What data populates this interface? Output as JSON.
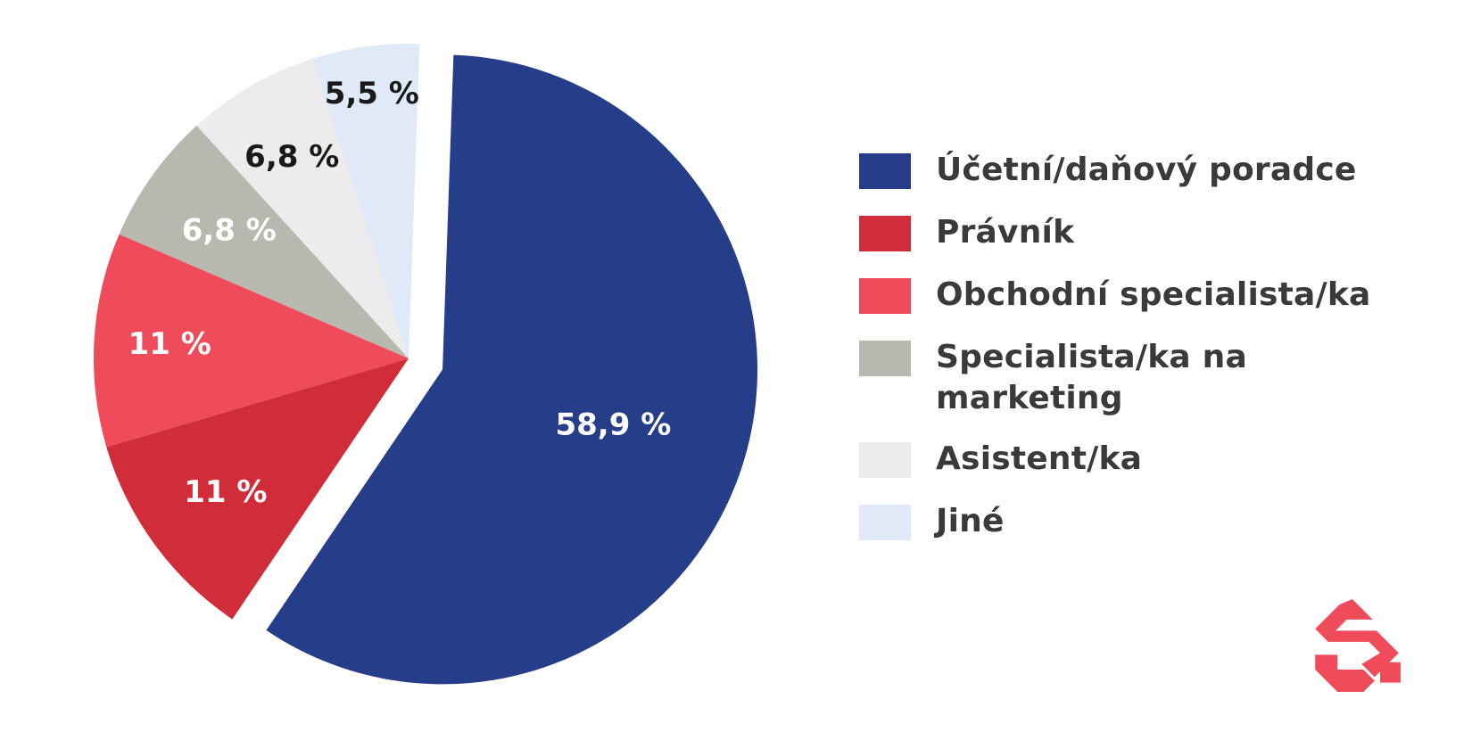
{
  "chart_data": {
    "type": "pie",
    "categories": [
      "Účetní/daňový poradce",
      "Právník",
      "Obchodní specialista/ka",
      "Specialista/ka na marketing",
      "Asistent/ka",
      "Jiné"
    ],
    "values": [
      58.9,
      11,
      11,
      6.8,
      6.8,
      5.5
    ],
    "value_labels": [
      "58,9 %",
      "11 %",
      "11 %",
      "6,8 %",
      "6,8 %",
      "5,5 %"
    ],
    "colors": [
      "#263d8a",
      "#d02c39",
      "#ef4b5a",
      "#b9b8ae",
      "#ececec",
      "#dfe9f8"
    ],
    "label_colors": [
      "#ffffff",
      "#ffffff",
      "#ffffff",
      "#ffffff",
      "#1a1a1a",
      "#1a1a1a"
    ],
    "exploded_slice": "Účetní/daňový poradce",
    "legend_position": "right",
    "title": ""
  },
  "legend": {
    "items": [
      {
        "label": "Účetní/daňový poradce",
        "color": "#263d8a"
      },
      {
        "label": "Právník",
        "color": "#d02c39"
      },
      {
        "label": "Obchodní specialista/ka",
        "color": "#ef4b5a"
      },
      {
        "label": "Specialista/ka na marketing",
        "color": "#b9b8ae"
      },
      {
        "label": "Asistent/ka",
        "color": "#ececec"
      },
      {
        "label": "Jiné",
        "color": "#dfe9f8"
      }
    ]
  },
  "logo": {
    "icon": "brand-logo-icon",
    "color": "#ef4b5a"
  }
}
